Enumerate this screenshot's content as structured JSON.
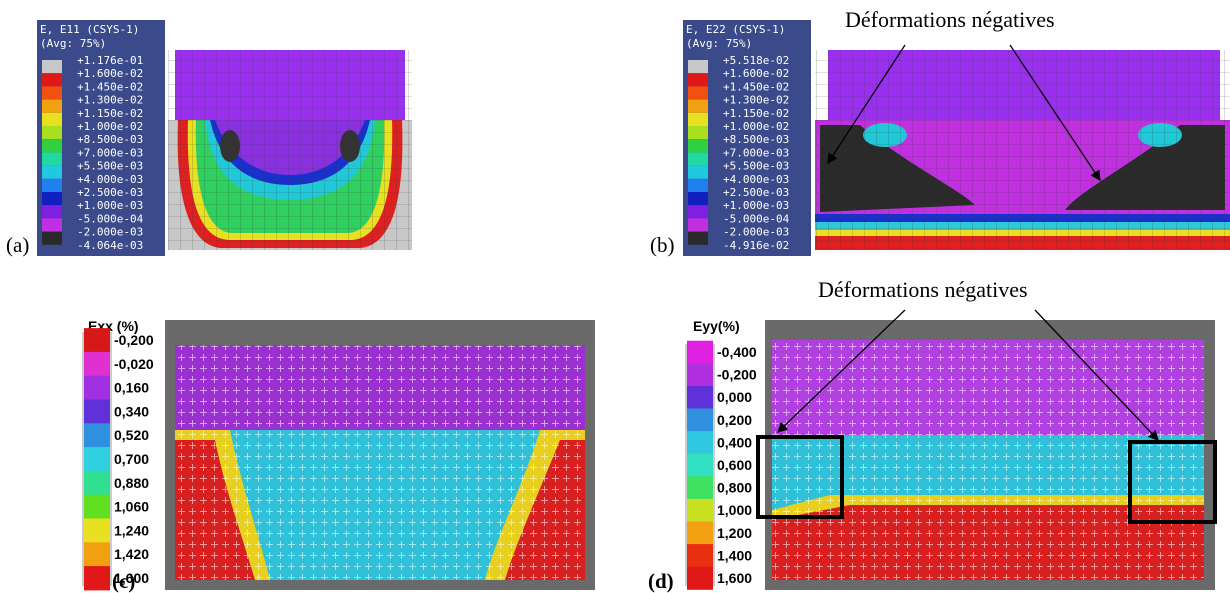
{
  "panels": [
    {
      "label": "(a)",
      "legend_title": [
        "E, E11 (CSYS-1)",
        "(Avg: 75%)"
      ],
      "legend_labels": [
        "+1.176e-01",
        "+1.600e-02",
        "+1.450e-02",
        "+1.300e-02",
        "+1.150e-02",
        "+1.000e-02",
        "+8.500e-03",
        "+7.000e-03",
        "+5.500e-03",
        "+4.000e-03",
        "+2.500e-03",
        "+1.000e-03",
        "-5.000e-04",
        "-2.000e-03",
        "-4.064e-03"
      ]
    },
    {
      "label": "(b)",
      "legend_title": [
        "E, E22 (CSYS-1)",
        "(Avg: 75%)"
      ],
      "legend_labels": [
        "+5.518e-02",
        "+1.600e-02",
        "+1.450e-02",
        "+1.300e-02",
        "+1.150e-02",
        "+1.000e-02",
        "+8.500e-03",
        "+7.000e-03",
        "+5.500e-03",
        "+4.000e-03",
        "+2.500e-03",
        "+1.000e-03",
        "-5.000e-04",
        "-2.000e-03",
        "-4.916e-02"
      ],
      "annotation": "Déformations négatives"
    },
    {
      "label": "(c)",
      "legend_title": "Exx (%)",
      "legend_labels": [
        "-0,200",
        "-0,020",
        "0,160",
        "0,340",
        "0,520",
        "0,700",
        "0,880",
        "1,060",
        "1,240",
        "1,420",
        "1,600"
      ]
    },
    {
      "label": "(d)",
      "legend_title": "Eyy(%)",
      "legend_labels": [
        "-0,400",
        "-0,200",
        "0,000",
        "0,200",
        "0,400",
        "0,600",
        "0,800",
        "1,000",
        "1,200",
        "1,400",
        "1,600"
      ],
      "annotation": "Déformations négatives"
    }
  ]
}
